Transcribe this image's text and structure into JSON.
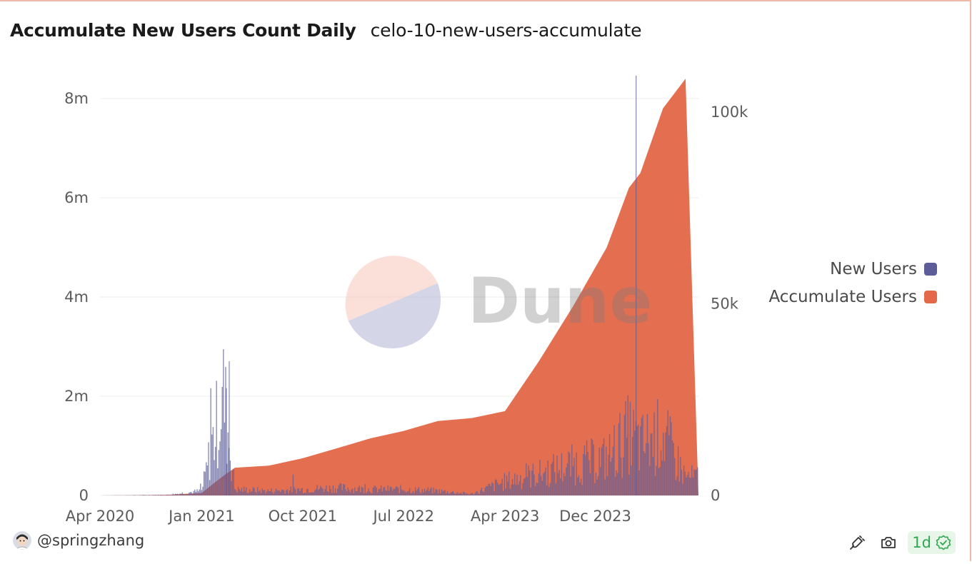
{
  "header": {
    "title": "Accumulate New Users Count Daily",
    "subtitle": "celo-10-new-users-accumulate"
  },
  "footer": {
    "author": "@springzhang",
    "freshness": "1d"
  },
  "colors": {
    "new_users": "#5b5c98",
    "accumulate_users": "#e3694a",
    "watermark_top": "#f5c6b8",
    "watermark_bottom": "#b9b9d8",
    "watermark_text": "#7a7a7a",
    "freshness_green": "#2fa84f"
  },
  "icons": {
    "watermark": "dune-logo",
    "avatar": "user-avatar-icon",
    "embed": "embed-icon",
    "snapshot": "camera-icon",
    "freshness": "check-badge-icon"
  },
  "chart_data": {
    "type": "area",
    "watermark": "Dune",
    "x_ticks": [
      "Apr 2020",
      "Jan 2021",
      "Oct 2021",
      "Jul 2022",
      "Apr 2023",
      "Dec 2023"
    ],
    "y_left_ticks": [
      "0",
      "2m",
      "4m",
      "6m",
      "8m"
    ],
    "y_left_range": [
      0,
      8500000
    ],
    "y_right_ticks": [
      "0",
      "50k",
      "100k"
    ],
    "y_right_range": [
      0,
      110000
    ],
    "grid": true,
    "legend_position": "right",
    "x": [
      "2020-04",
      "2020-07",
      "2020-10",
      "2021-01",
      "2021-03",
      "2021-04",
      "2021-07",
      "2021-10",
      "2022-01",
      "2022-04",
      "2022-07",
      "2022-10",
      "2023-01",
      "2023-04",
      "2023-07",
      "2023-10",
      "2024-01",
      "2024-03",
      "2024-04",
      "2024-06",
      "2024-08"
    ],
    "series": [
      {
        "name": "Accumulate Users",
        "axis": "left",
        "values": [
          0,
          5000,
          15000,
          50000,
          400000,
          560000,
          600000,
          750000,
          950000,
          1150000,
          1300000,
          1500000,
          1560000,
          1700000,
          2700000,
          3800000,
          5000000,
          6200000,
          6500000,
          7800000,
          8400000
        ]
      },
      {
        "name": "New Users",
        "axis": "right",
        "values": [
          0,
          100,
          200,
          1500,
          33000,
          2000,
          1500,
          2000,
          2500,
          2000,
          2000,
          1500,
          500,
          4500,
          7000,
          10000,
          12000,
          20000,
          16000,
          20000,
          6000
        ]
      }
    ]
  }
}
